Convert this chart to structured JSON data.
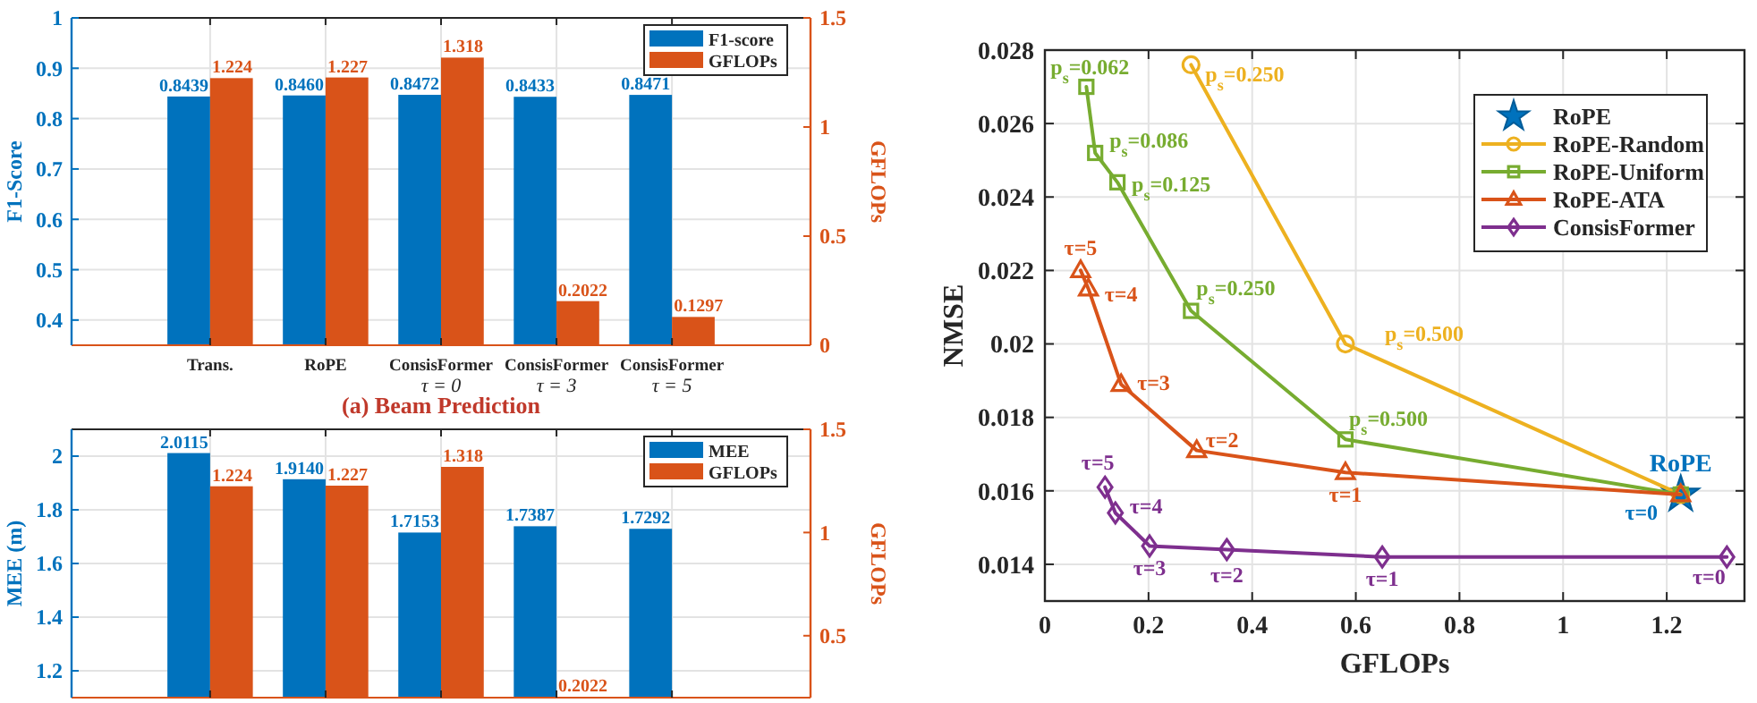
{
  "chart_data": [
    {
      "type": "bar",
      "title": "(a) Beam Prediction",
      "categories": [
        "Trans.",
        "RoPE",
        "ConsisFormer\nτ = 0",
        "ConsisFormer\nτ = 3",
        "ConsisFormer\nτ = 5"
      ],
      "ylabel": "F1-Score",
      "y2label": "GFLOPs",
      "ylim": [
        0.35,
        1
      ],
      "yticks": [
        0.4,
        0.5,
        0.6,
        0.7,
        0.8,
        0.9,
        1
      ],
      "y2lim": [
        0,
        1.5
      ],
      "y2ticks": [
        0,
        0.5,
        1,
        1.5
      ],
      "grid": true,
      "legend": "top right",
      "series": [
        {
          "name": "F1-score",
          "color": "#0072bd",
          "values": [
            0.8439,
            0.846,
            0.8472,
            0.8433,
            0.8471
          ],
          "value_labels": [
            "0.8439",
            "0.8460",
            "0.8472",
            "0.8433",
            "0.8471"
          ]
        },
        {
          "name": "GFLOPs",
          "color": "#d95319",
          "axis": "y2",
          "values": [
            1.224,
            1.227,
            1.318,
            0.2022,
            0.1297
          ],
          "value_labels": [
            "1.224",
            "1.227",
            "1.318",
            "0.2022",
            "0.1297"
          ]
        }
      ]
    },
    {
      "type": "bar",
      "categories": [
        null,
        null,
        null,
        null,
        null
      ],
      "ylabel": "MEE (m)",
      "y2label": "GFLOPs",
      "ylim": [
        1.1,
        2.1
      ],
      "yticks": [
        1.2,
        1.4,
        1.6,
        1.8,
        2
      ],
      "y2lim": [
        0.2,
        1.5
      ],
      "y2ticks": [
        0.5,
        1,
        1.5
      ],
      "grid": true,
      "legend": "top right",
      "series": [
        {
          "name": "MEE",
          "color": "#0072bd",
          "values": [
            2.0115,
            1.914,
            1.7153,
            1.7387,
            1.7292
          ],
          "value_labels": [
            "2.0115",
            "1.9140",
            "1.7153",
            "1.7387",
            "1.7292"
          ]
        },
        {
          "name": "GFLOPs",
          "color": "#d95319",
          "axis": "y2",
          "values": [
            1.224,
            1.227,
            1.318,
            0.2022,
            null
          ],
          "value_labels": [
            "1.224",
            "1.227",
            "1.318",
            "0.2022",
            null
          ]
        }
      ]
    },
    {
      "type": "line",
      "annotations": [
        {
          "text": "RoPE",
          "x": 1.227,
          "y": 0.0159
        },
        {
          "text": "p$_{s}$=0.250",
          "x": 0.282,
          "y": 0.0276
        },
        {
          "text": "p$_{s}$=0.500",
          "x": 0.58,
          "y": 0.02
        },
        {
          "text": "p$_{s}$=0.062",
          "x": 0.08,
          "y": 0.027
        },
        {
          "text": "p$_{s}$=0.086",
          "x": 0.097,
          "y": 0.0252
        },
        {
          "text": "p$_{s}$=0.125",
          "x": 0.14,
          "y": 0.0244
        },
        {
          "text": "p$_{s}$=0.250",
          "x": 0.282,
          "y": 0.0209
        },
        {
          "text": "p$_{s}$=0.500",
          "x": 0.58,
          "y": 0.0174
        },
        {
          "text": "τ=5",
          "x": 0.069,
          "y": 0.022
        },
        {
          "text": "τ=4",
          "x": 0.084,
          "y": 0.0215
        },
        {
          "text": "τ=3",
          "x": 0.147,
          "y": 0.0189
        },
        {
          "text": "τ=2",
          "x": 0.293,
          "y": 0.0171
        },
        {
          "text": "τ=1",
          "x": 0.58,
          "y": 0.0165
        },
        {
          "text": "τ=0",
          "x": 1.227,
          "y": 0.0159
        },
        {
          "text": "τ=5",
          "x": 0.116,
          "y": 0.0161
        },
        {
          "text": "τ=4",
          "x": 0.136,
          "y": 0.0154
        },
        {
          "text": "τ=3",
          "x": 0.202,
          "y": 0.0145
        },
        {
          "text": "τ=2",
          "x": 0.351,
          "y": 0.0144
        },
        {
          "text": "τ=1",
          "x": 0.651,
          "y": 0.0142
        },
        {
          "text": "τ=0",
          "x": 1.316,
          "y": 0.0142
        }
      ],
      "xlabel": "GFLOPs",
      "ylabel": "NMSE",
      "xlim": [
        0,
        1.35
      ],
      "xticks": [
        0,
        0.2,
        0.4,
        0.6,
        0.8,
        1,
        1.2
      ],
      "ylim": [
        0.013,
        0.028
      ],
      "yticks": [
        0.014,
        0.016,
        0.018,
        0.02,
        0.022,
        0.024,
        0.026,
        0.028
      ],
      "grid": true,
      "legend": "top right",
      "line_style": "solid",
      "series": [
        {
          "name": "RoPE",
          "type": "scatter",
          "marker": "star",
          "color": "#0072bd",
          "x": [
            1.227
          ],
          "values": [
            0.0159
          ]
        },
        {
          "name": "RoPE-Random",
          "type": "line",
          "marker": "circle",
          "color": "#edb120",
          "x": [
            0.282,
            0.58,
            1.227
          ],
          "values": [
            0.0276,
            0.02,
            0.0159
          ]
        },
        {
          "name": "RoPE-Uniform",
          "type": "line",
          "marker": "square",
          "color": "#77ac30",
          "x": [
            0.08,
            0.097,
            0.14,
            0.282,
            0.58,
            1.227
          ],
          "values": [
            0.027,
            0.0252,
            0.0244,
            0.0209,
            0.0174,
            0.0159
          ]
        },
        {
          "name": "RoPE-ATA",
          "type": "line",
          "marker": "triangle",
          "color": "#d95319",
          "x": [
            0.069,
            0.084,
            0.147,
            0.293,
            0.58,
            1.227
          ],
          "values": [
            0.022,
            0.0215,
            0.0189,
            0.0171,
            0.0165,
            0.0159
          ]
        },
        {
          "name": "ConsisFormer",
          "type": "line",
          "marker": "diamond",
          "color": "#7e2f8e",
          "x": [
            0.116,
            0.136,
            0.202,
            0.351,
            0.651,
            1.316
          ],
          "values": [
            0.0161,
            0.0154,
            0.0145,
            0.0144,
            0.0142,
            0.0142
          ]
        }
      ]
    }
  ]
}
